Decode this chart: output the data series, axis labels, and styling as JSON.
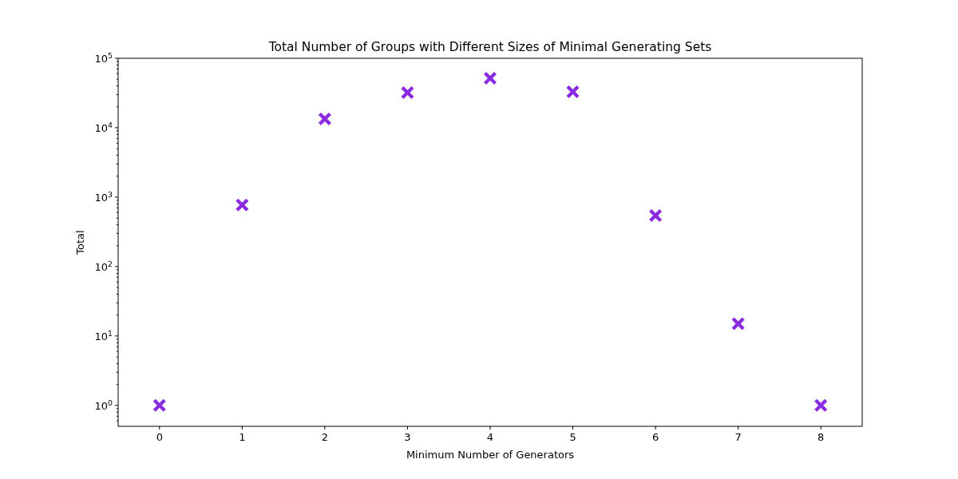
{
  "chart_data": {
    "type": "scatter",
    "title": "Total Number of Groups with Different Sizes of Minimal Generating Sets",
    "xlabel": "Minimum Number of Generators",
    "ylabel": "Total",
    "x": [
      0,
      1,
      2,
      3,
      4,
      5,
      6,
      7,
      8
    ],
    "series": [
      {
        "color": "#8a2be2",
        "values": [
          1,
          770,
          13400,
          32000,
          51600,
          32900,
          544,
          15,
          1
        ]
      }
    ],
    "xlim": [
      -0.5,
      8.5
    ],
    "xticks": [
      0,
      1,
      2,
      3,
      4,
      5,
      6,
      7,
      8
    ],
    "ylim": [
      0.5,
      100000
    ],
    "log": true,
    "marker": "cross",
    "grid": false,
    "yticks": [
      {
        "value": 0.6,
        "label": null
      },
      {
        "value": 0.7,
        "label": null
      },
      {
        "value": 0.8,
        "label": null
      },
      {
        "value": 0.9,
        "label": null
      },
      {
        "value": 1,
        "label": "10$^{0}$"
      },
      {
        "value": 2,
        "label": null
      },
      {
        "value": 3,
        "label": null
      },
      {
        "value": 4,
        "label": null
      },
      {
        "value": 5,
        "label": null
      },
      {
        "value": 6,
        "label": null
      },
      {
        "value": 7,
        "label": null
      },
      {
        "value": 8,
        "label": null
      },
      {
        "value": 9,
        "label": null
      },
      {
        "value": 10,
        "label": "10$^{1}$"
      },
      {
        "value": 20,
        "label": null
      },
      {
        "value": 30,
        "label": null
      },
      {
        "value": 40,
        "label": null
      },
      {
        "value": 50,
        "label": null
      },
      {
        "value": 60,
        "label": null
      },
      {
        "value": 70,
        "label": null
      },
      {
        "value": 80,
        "label": null
      },
      {
        "value": 90,
        "label": null
      },
      {
        "value": 100,
        "label": "10$^{2}$"
      },
      {
        "value": 200,
        "label": null
      },
      {
        "value": 300,
        "label": null
      },
      {
        "value": 400,
        "label": null
      },
      {
        "value": 500,
        "label": null
      },
      {
        "value": 600,
        "label": null
      },
      {
        "value": 700,
        "label": null
      },
      {
        "value": 800,
        "label": null
      },
      {
        "value": 900,
        "label": null
      },
      {
        "value": 1000,
        "label": "10$^{3}$"
      },
      {
        "value": 2000,
        "label": null
      },
      {
        "value": 3000,
        "label": null
      },
      {
        "value": 4000,
        "label": null
      },
      {
        "value": 5000,
        "label": null
      },
      {
        "value": 6000,
        "label": null
      },
      {
        "value": 7000,
        "label": null
      },
      {
        "value": 8000,
        "label": null
      },
      {
        "value": 9000,
        "label": null
      },
      {
        "value": 10000,
        "label": "10$^{4}$"
      },
      {
        "value": 20000,
        "label": null
      },
      {
        "value": 30000,
        "label": null
      },
      {
        "value": 40000,
        "label": null
      },
      {
        "value": 50000,
        "label": null
      },
      {
        "value": 60000,
        "label": null
      },
      {
        "value": 70000,
        "label": null
      },
      {
        "value": 80000,
        "label": null
      },
      {
        "value": 90000,
        "label": null
      },
      {
        "value": 100000,
        "label": "10$^{5}$"
      }
    ]
  }
}
